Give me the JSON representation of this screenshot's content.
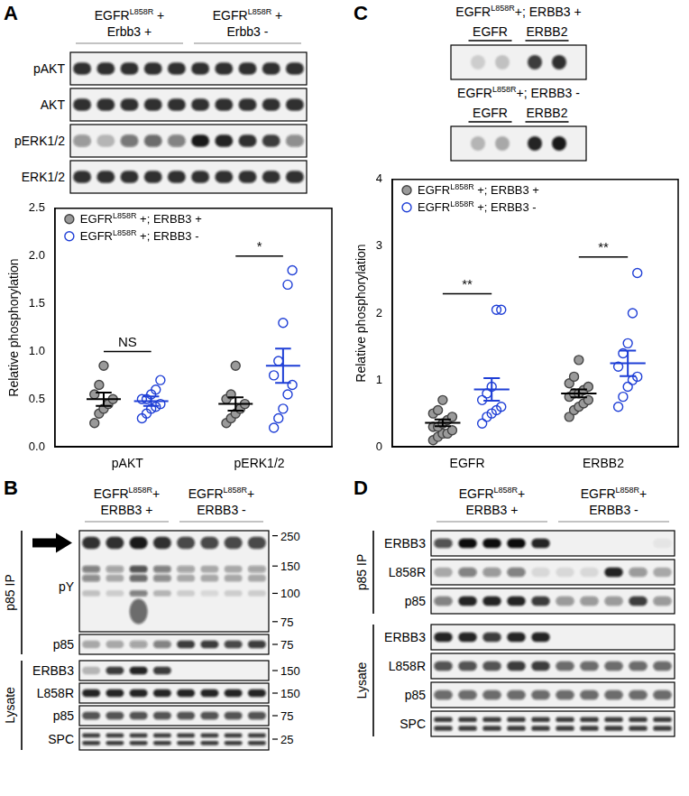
{
  "panels": [
    {
      "letter": "A",
      "groups": [
        {
          "text": "EGFR",
          "sup": "L858R",
          "after": " +",
          "line2": "Erbb3 +"
        },
        {
          "text": "EGFR",
          "sup": "L858R",
          "after": " +",
          "line2": "Erbb3 -"
        }
      ],
      "rows": [
        "pAKT",
        "AKT",
        "pERK1/2",
        "ERK1/2"
      ]
    },
    {
      "letter": "B",
      "groups": [
        {
          "text": "EGFR",
          "sup": "L858R",
          "after": "+",
          "line2": "ERBB3 +"
        },
        {
          "text": "EGFR",
          "sup": "L858R",
          "after": "+",
          "line2": "ERBB3 -"
        }
      ],
      "sections": [
        {
          "label": "p85 IP",
          "rows": [
            {
              "label": "pY",
              "markers": [
                250,
                150,
                100,
                75
              ]
            },
            {
              "label": "p85",
              "markers": [
                75
              ]
            }
          ]
        },
        {
          "label": "Lysate",
          "rows": [
            {
              "label": "ERBB3",
              "markers": [
                150
              ]
            },
            {
              "label": "L858R",
              "markers": [
                150
              ]
            },
            {
              "label": "p85",
              "markers": [
                75
              ]
            },
            {
              "label": "SPC",
              "markers": [
                25
              ]
            }
          ]
        }
      ]
    },
    {
      "letter": "C",
      "dot_blots": [
        {
          "group": {
            "text": "EGFR",
            "sup": "L858R",
            "after": "+; ERBB3 +"
          },
          "spots": [
            "EGFR",
            "ERBB2"
          ]
        },
        {
          "group": {
            "text": "EGFR",
            "sup": "L858R",
            "after": "+; ERBB3 -"
          },
          "spots": [
            "EGFR",
            "ERBB2"
          ]
        }
      ]
    },
    {
      "letter": "D",
      "groups": [
        {
          "text": "EGFR",
          "sup": "L858R",
          "after": "+",
          "line2": "ERBB3 +"
        },
        {
          "text": "EGFR",
          "sup": "L858R",
          "after": "+",
          "line2": "ERBB3 -"
        }
      ],
      "sections": [
        {
          "label": "p85 IP",
          "rows": [
            {
              "label": "ERBB3"
            },
            {
              "label": "L858R"
            },
            {
              "label": "p85"
            }
          ]
        },
        {
          "label": "Lysate",
          "rows": [
            {
              "label": "ERBB3"
            },
            {
              "label": "L858R"
            },
            {
              "label": "p85"
            },
            {
              "label": "SPC"
            }
          ]
        }
      ]
    }
  ],
  "chart_data": [
    {
      "type": "scatter",
      "categories": [
        "pAKT",
        "pERK1/2"
      ],
      "y_label": "Relative phosphorylation",
      "ylim": [
        0,
        2.5
      ],
      "yticks": [
        {
          "value": 0,
          "label": "0.0"
        },
        0.5,
        {
          "value": 1,
          "label": "1.0"
        },
        1.5,
        {
          "value": 2,
          "label": "2.0"
        },
        2.5
      ],
      "grid": false,
      "legend": "top-left",
      "series": [
        {
          "name": {
            "text": "EGFR",
            "sup": "L858R",
            "after": " +; ERBB3 +"
          },
          "color": "#9a9a9a",
          "marker": "filled",
          "values": [
            [
              0.25,
              0.35,
              0.4,
              0.45,
              0.5,
              0.55,
              0.65,
              0.85
            ],
            [
              0.25,
              0.3,
              0.35,
              0.4,
              0.45,
              0.5,
              0.55,
              0.85
            ]
          ],
          "mean": [
            0.5,
            0.45
          ],
          "sem": [
            0.07,
            0.07
          ]
        },
        {
          "name": {
            "text": "EGFR",
            "sup": "L858R",
            "after": " +; ERBB3 -"
          },
          "color": "#1f3fd6",
          "marker": "open",
          "values": [
            [
              0.3,
              0.35,
              0.4,
              0.42,
              0.45,
              0.5,
              0.5,
              0.55,
              0.6,
              0.7
            ],
            [
              0.2,
              0.3,
              0.4,
              0.55,
              0.65,
              0.75,
              0.9,
              1.3,
              1.7,
              1.85
            ]
          ],
          "mean": [
            0.48,
            0.85
          ],
          "sem": [
            0.05,
            0.18
          ]
        }
      ],
      "annotations": [
        {
          "category": "pAKT",
          "text": "NS"
        },
        {
          "category": "pERK1/2",
          "text": "*"
        }
      ]
    },
    {
      "type": "scatter",
      "categories": [
        "EGFR",
        "ERBB2"
      ],
      "y_label": "Relative phosphorylation",
      "ylim": [
        0,
        4
      ],
      "yticks": [
        0,
        1,
        2,
        3,
        4
      ],
      "grid": false,
      "legend": "top-left",
      "series": [
        {
          "name": {
            "text": "EGFR",
            "sup": "L858R",
            "after": " +; ERBB3 +"
          },
          "color": "#9a9a9a",
          "marker": "filled",
          "values": [
            [
              0.1,
              0.15,
              0.2,
              0.2,
              0.25,
              0.3,
              0.3,
              0.35,
              0.4,
              0.45,
              0.5,
              0.55,
              0.7
            ],
            [
              0.45,
              0.55,
              0.6,
              0.65,
              0.7,
              0.75,
              0.8,
              0.8,
              0.85,
              0.9,
              0.95,
              1.05,
              1.3
            ]
          ],
          "mean": [
            0.36,
            0.8
          ],
          "sem": [
            0.05,
            0.06
          ]
        },
        {
          "name": {
            "text": "EGFR",
            "sup": "L858R",
            "after": " +; ERBB3 -"
          },
          "color": "#1f3fd6",
          "marker": "open",
          "values": [
            [
              0.35,
              0.45,
              0.5,
              0.55,
              0.6,
              0.7,
              0.8,
              0.9,
              2.05,
              2.05
            ],
            [
              0.6,
              0.75,
              0.9,
              1.0,
              1.05,
              1.2,
              1.4,
              1.55,
              2.0,
              2.6
            ]
          ],
          "mean": [
            0.86,
            1.25
          ],
          "sem": [
            0.17,
            0.19
          ]
        }
      ],
      "annotations": [
        {
          "category": "EGFR",
          "text": "**"
        },
        {
          "category": "ERBB2",
          "text": "**"
        }
      ]
    }
  ]
}
